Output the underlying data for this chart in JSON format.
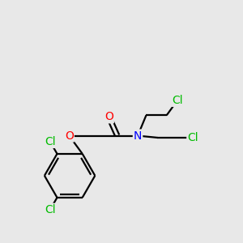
{
  "background_color": "#e8e8e8",
  "bond_color": "#000000",
  "atom_colors": {
    "Cl": "#00bb00",
    "N": "#0000ff",
    "O": "#ff0000",
    "C": "#000000"
  },
  "font_size": 10,
  "figsize": [
    3.0,
    3.0
  ],
  "dpi": 100,
  "xlim": [
    0,
    10
  ],
  "ylim": [
    0,
    10
  ]
}
